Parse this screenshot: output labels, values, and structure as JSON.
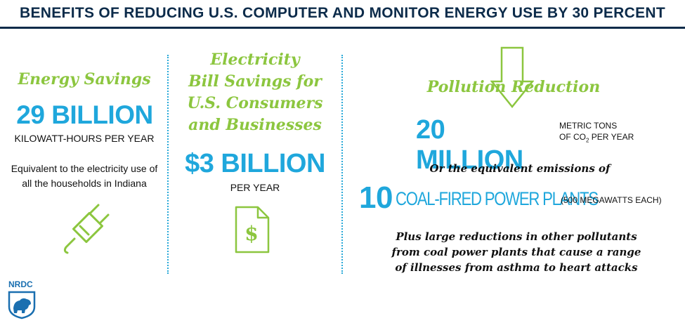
{
  "title": "BENEFITS OF REDUCING U.S. COMPUTER AND MONITOR ENERGY USE BY 30 PERCENT",
  "col1": {
    "heading": "Energy Savings",
    "big_value": "29 BILLION",
    "unit": "KILOWATT-HOURS PER YEAR",
    "desc_line1": "Equivalent to the electricity use of",
    "desc_line2": "all the households in Indiana",
    "icon": "plug-icon"
  },
  "col2": {
    "heading_line1": "Electricity",
    "heading_line2": "Bill Savings for",
    "heading_line3": "U.S. Consumers",
    "heading_line4": "and Businesses",
    "big_value": "$3 BILLION",
    "unit": "PER YEAR",
    "icon": "dollar-document-icon",
    "icon_glyph": "$"
  },
  "col3": {
    "heading": "Pollution Reduction",
    "arrow_icon": "down-arrow-icon",
    "big_value": "20 MILLION",
    "unit_line1": "METRIC TONS",
    "unit_line2_pre": "OF CO",
    "unit_line2_sub": "2",
    "unit_line2_post": " PER YEAR",
    "equiv_text": "Or the equivalent emissions of",
    "plants_number": "10",
    "plants_label": "COAL-FIRED POWER PLANTS",
    "plants_note": "(500 MEGAWATTS EACH)",
    "closing_line1": "Plus large reductions in other pollutants",
    "closing_line2": "from coal power plants that cause a range",
    "closing_line3": "of illnesses from asthma to heart attacks"
  },
  "logo": {
    "text": "NRDC",
    "icon": "bear-shield-icon"
  },
  "colors": {
    "navy": "#0c2b4a",
    "green": "#8cc63f",
    "blue": "#1fa7dc"
  }
}
